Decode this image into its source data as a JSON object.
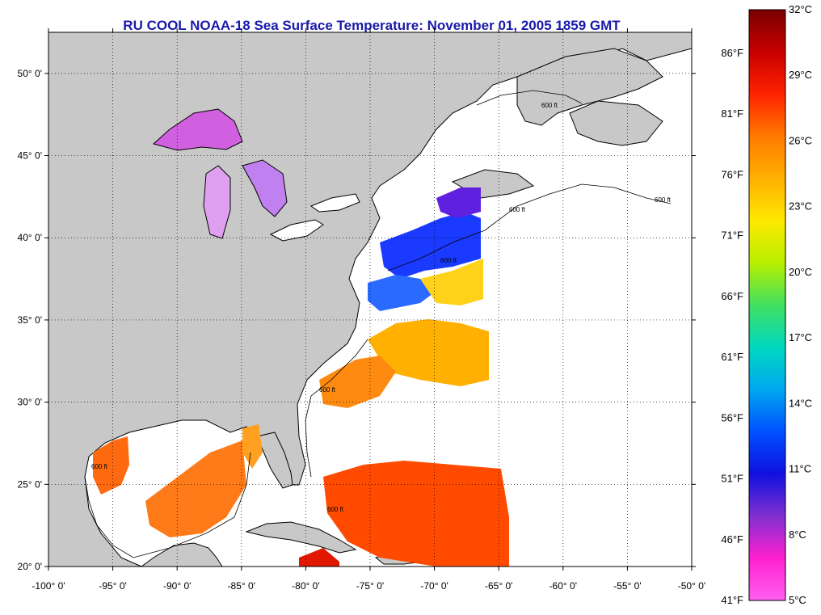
{
  "title": "RU COOL  NOAA-18  Sea Surface Temperature:  November 01, 2005 1859 GMT",
  "map": {
    "lon_range": [
      -100,
      -50
    ],
    "lat_range": [
      20,
      52.5
    ],
    "lat_ticks": [
      {
        "value": 50,
        "label": "50° 0'"
      },
      {
        "value": 45,
        "label": "45° 0'"
      },
      {
        "value": 40,
        "label": "40° 0'"
      },
      {
        "value": 35,
        "label": "35° 0'"
      },
      {
        "value": 30,
        "label": "30° 0'"
      },
      {
        "value": 25,
        "label": "25° 0'"
      },
      {
        "value": 20,
        "label": "20° 0'"
      }
    ],
    "lon_ticks": [
      {
        "value": -100,
        "label": "-100° 0'"
      },
      {
        "value": -95,
        "label": "-95° 0'"
      },
      {
        "value": -90,
        "label": "-90° 0'"
      },
      {
        "value": -85,
        "label": "-85° 0'"
      },
      {
        "value": -80,
        "label": "-80° 0'"
      },
      {
        "value": -75,
        "label": "-75° 0'"
      },
      {
        "value": -70,
        "label": "-70° 0'"
      },
      {
        "value": -65,
        "label": "-65° 0'"
      },
      {
        "value": -60,
        "label": "-60° 0'"
      },
      {
        "value": -55,
        "label": "-55° 0'"
      },
      {
        "value": -50,
        "label": "-50° 0'"
      }
    ],
    "isobath_label": "600 ft",
    "land_color": "#c8c8c8",
    "ocean_no_data_color": "#ffffff"
  },
  "colorbar": {
    "celsius_labels": [
      "32°C",
      "29°C",
      "26°C",
      "23°C",
      "20°C",
      "17°C",
      "14°C",
      "11°C",
      "8°C",
      "5°C"
    ],
    "fahrenheit_labels": [
      "86°F",
      "81°F",
      "76°F",
      "71°F",
      "66°F",
      "61°F",
      "56°F",
      "51°F",
      "46°F",
      "41°F"
    ],
    "colors": [
      "#7a0000",
      "#c80000",
      "#ff2200",
      "#ff7a00",
      "#ffb000",
      "#ffe800",
      "#b8f000",
      "#40e060",
      "#00d8c0",
      "#00a8f0",
      "#0050ff",
      "#1010e0",
      "#8030d0",
      "#ff20d0",
      "#ff60f0"
    ]
  }
}
